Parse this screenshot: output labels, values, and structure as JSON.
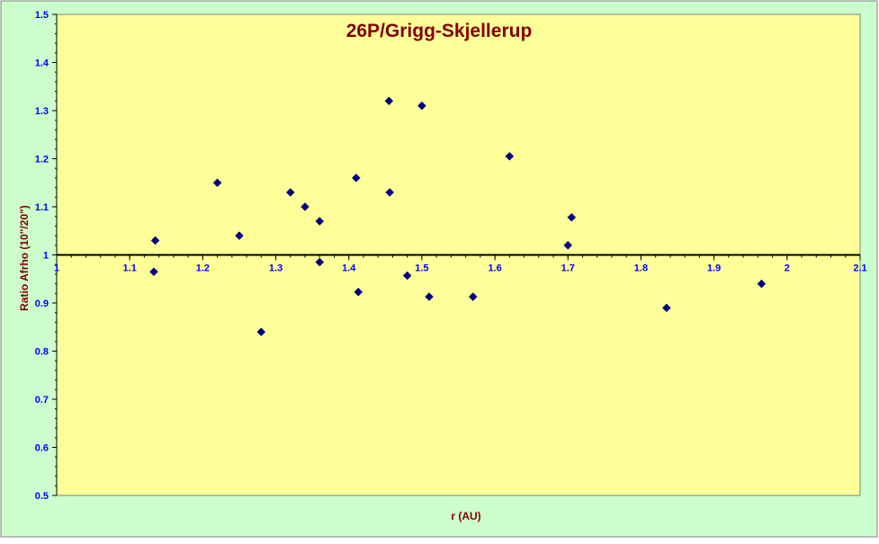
{
  "chart_data": {
    "type": "scatter",
    "title": "26P/Grigg-Skjellerup",
    "xlabel": "r (AU)",
    "ylabel": "Ratio Afrho  (10\"/20\")",
    "xlim": [
      1,
      2.1
    ],
    "ylim": [
      0.5,
      1.5
    ],
    "x_axis_crosses_y_at": 1.0,
    "x_ticks": [
      1.1,
      1.2,
      1.3,
      1.4,
      1.5,
      1.6,
      1.7,
      1.8,
      1.9,
      2,
      2.1
    ],
    "x_tick_labels": [
      "1.1",
      "1.2",
      "1.3",
      "1.4",
      "1.5",
      "1.6",
      "1.7",
      "1.8",
      "1.9",
      "2",
      "2.1"
    ],
    "x_origin_label": "1",
    "y_ticks": [
      0.5,
      0.6,
      0.7,
      0.8,
      0.9,
      1,
      1.1,
      1.2,
      1.3,
      1.4,
      1.5
    ],
    "y_tick_labels": [
      "0.5",
      "0.6",
      "0.7",
      "0.8",
      "0.9",
      "1",
      "1.1",
      "1.2",
      "1.3",
      "1.4",
      "1.5"
    ],
    "grid": false,
    "legend": "none",
    "points": [
      {
        "x": 1.135,
        "y": 1.03
      },
      {
        "x": 1.133,
        "y": 0.965
      },
      {
        "x": 1.22,
        "y": 1.15
      },
      {
        "x": 1.25,
        "y": 1.04
      },
      {
        "x": 1.28,
        "y": 0.84
      },
      {
        "x": 1.32,
        "y": 1.13
      },
      {
        "x": 1.34,
        "y": 1.1
      },
      {
        "x": 1.36,
        "y": 1.07
      },
      {
        "x": 1.36,
        "y": 0.985
      },
      {
        "x": 1.41,
        "y": 1.16
      },
      {
        "x": 1.413,
        "y": 0.923
      },
      {
        "x": 1.455,
        "y": 1.32
      },
      {
        "x": 1.456,
        "y": 1.13
      },
      {
        "x": 1.48,
        "y": 0.957
      },
      {
        "x": 1.5,
        "y": 1.31
      },
      {
        "x": 1.51,
        "y": 0.913
      },
      {
        "x": 1.57,
        "y": 0.913
      },
      {
        "x": 1.62,
        "y": 1.205
      },
      {
        "x": 1.7,
        "y": 1.02
      },
      {
        "x": 1.705,
        "y": 1.078
      },
      {
        "x": 1.835,
        "y": 0.89
      },
      {
        "x": 1.965,
        "y": 0.94
      }
    ],
    "colors": {
      "outer_background": "#ccffcc",
      "plot_background": "#ffff99",
      "marker": "#000080",
      "title": "#800000",
      "axis_label": "#800000",
      "tick_label": "#0000ff",
      "axis_line": "#000000"
    }
  }
}
